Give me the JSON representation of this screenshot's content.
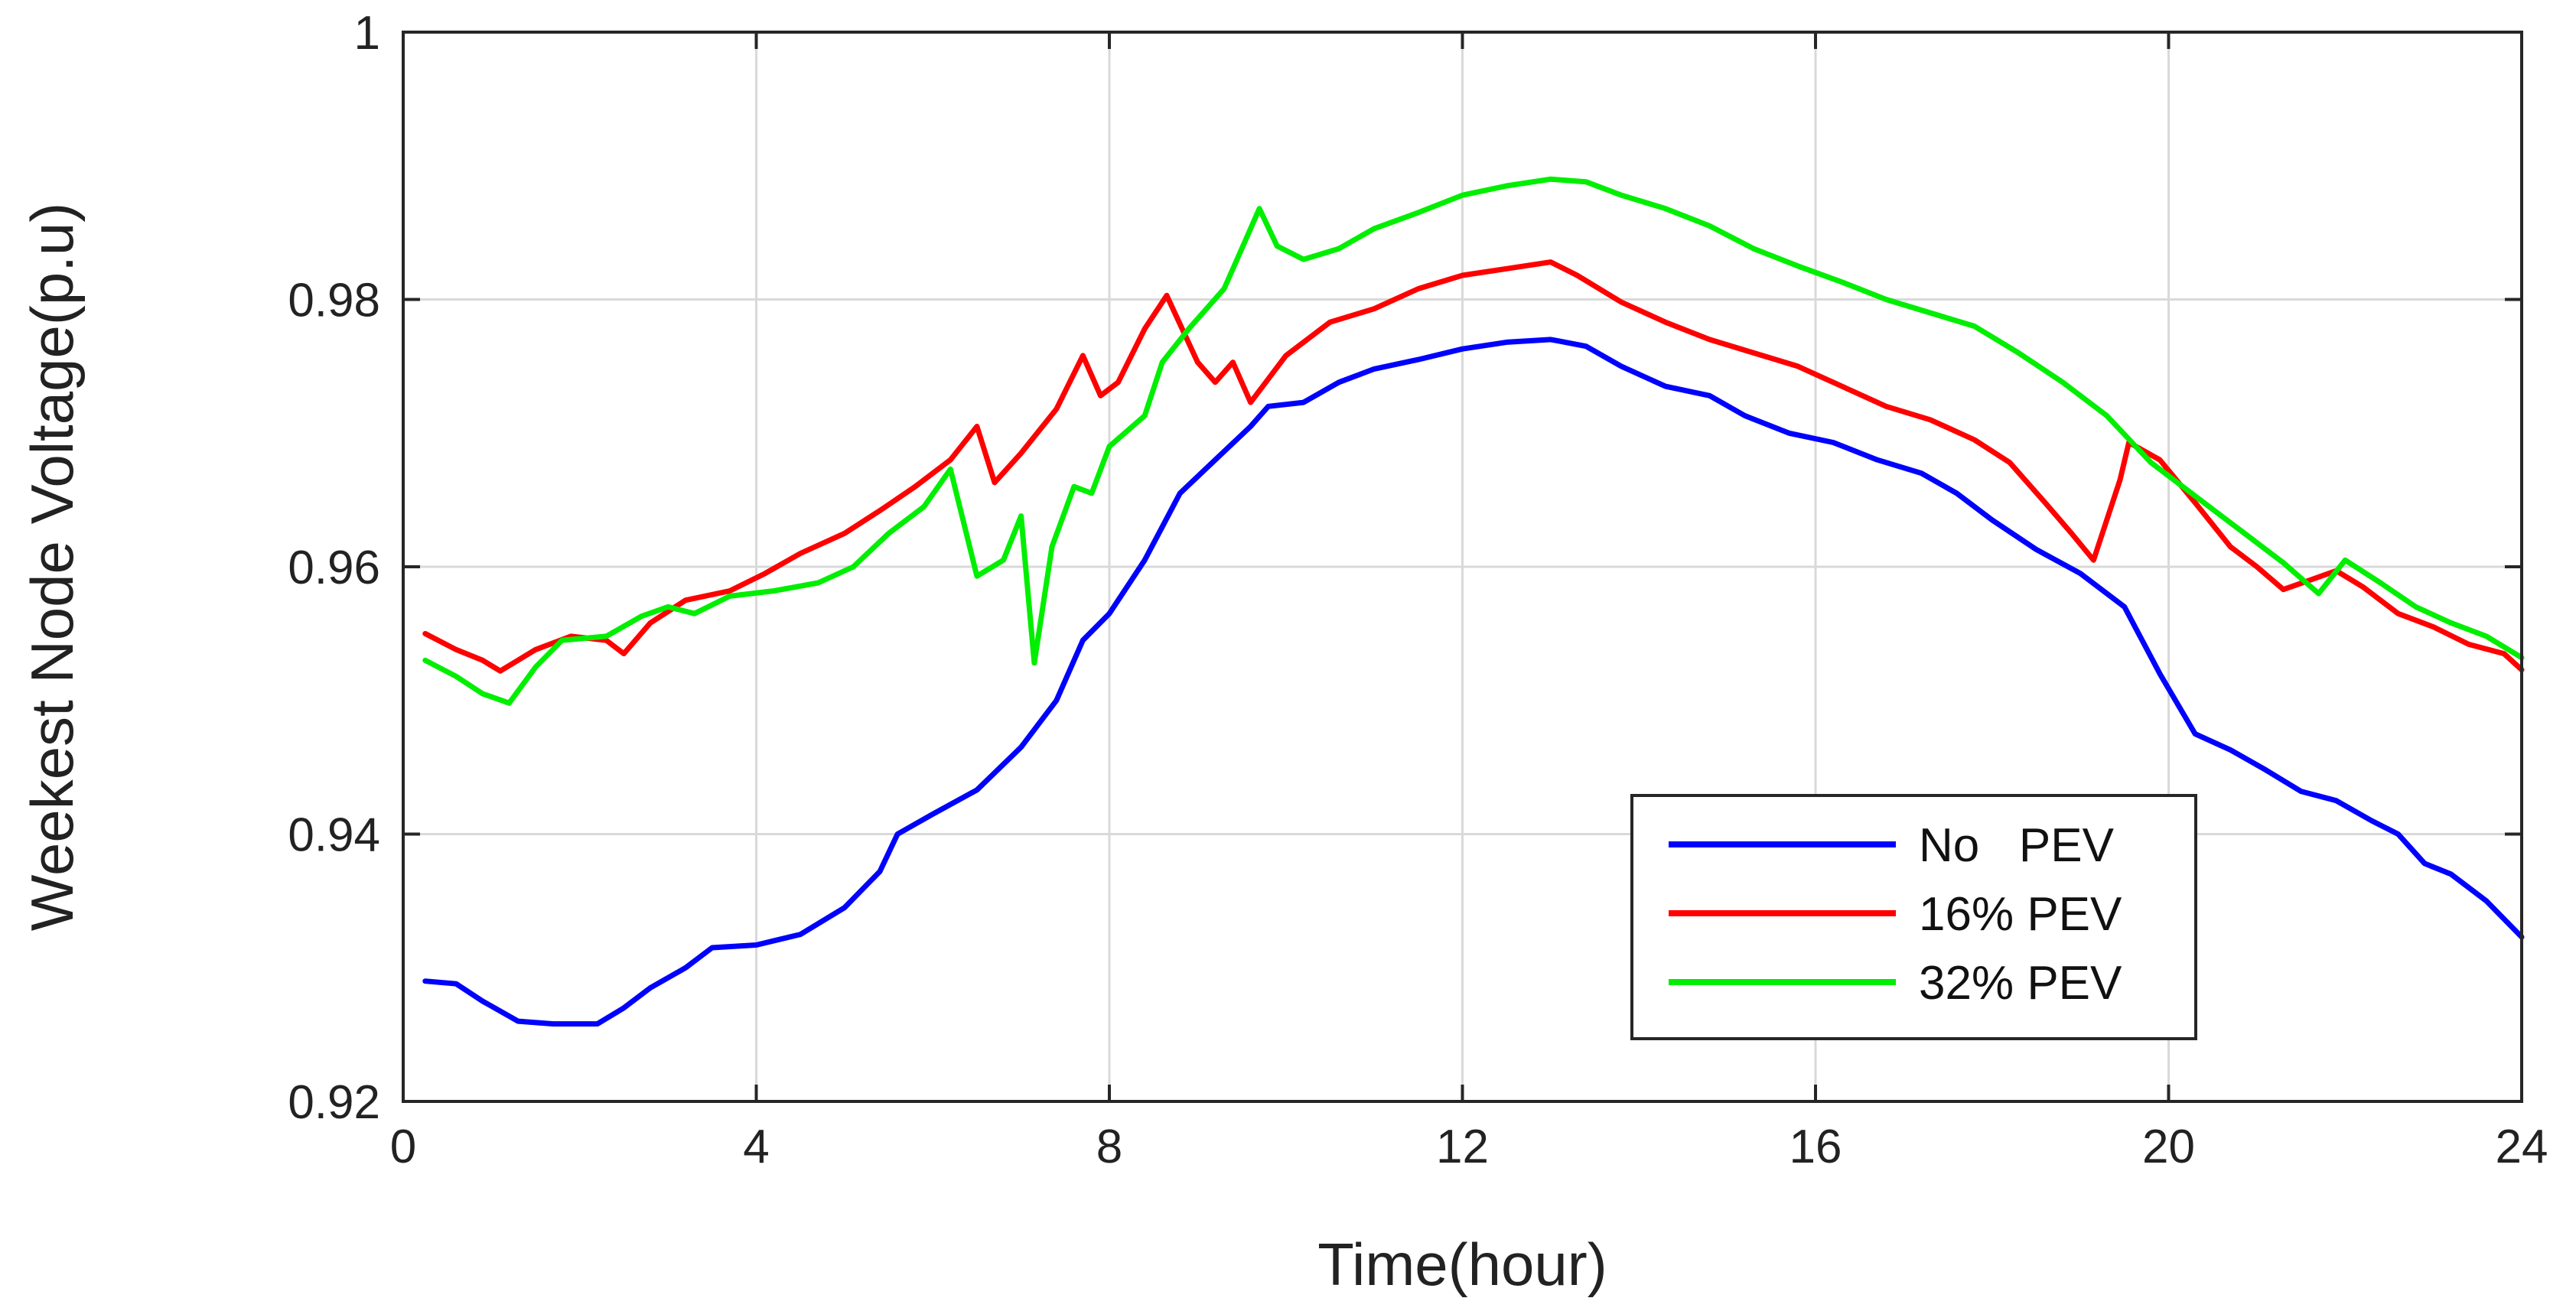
{
  "chart_data": {
    "type": "line",
    "xlabel": "Time(hour)",
    "ylabel": "Weekest Node Voltage(p.u)",
    "xlim": [
      0,
      24
    ],
    "ylim": [
      0.92,
      1.0
    ],
    "xticks": [
      0,
      4,
      8,
      12,
      16,
      20,
      24
    ],
    "xtick_labels": [
      "0",
      "4",
      "8",
      "12",
      "16",
      "20",
      "24"
    ],
    "yticks": [
      0.92,
      0.94,
      0.96,
      0.98,
      1.0
    ],
    "ytick_labels": [
      "0.92",
      "0.94",
      "0.96",
      "0.98",
      "1"
    ],
    "grid": true,
    "legend_position": "lower-right",
    "series": [
      {
        "name": "No   PEV",
        "color": "#0000ff",
        "points": [
          [
            0.25,
            0.929
          ],
          [
            0.6,
            0.9288
          ],
          [
            0.9,
            0.9275
          ],
          [
            1.3,
            0.926
          ],
          [
            1.7,
            0.9258
          ],
          [
            2.2,
            0.9258
          ],
          [
            2.5,
            0.927
          ],
          [
            2.8,
            0.9285
          ],
          [
            3.2,
            0.93
          ],
          [
            3.5,
            0.9315
          ],
          [
            4.0,
            0.9317
          ],
          [
            4.5,
            0.9325
          ],
          [
            5.0,
            0.9345
          ],
          [
            5.4,
            0.9372
          ],
          [
            5.6,
            0.94
          ],
          [
            6.0,
            0.9415
          ],
          [
            6.5,
            0.9433
          ],
          [
            7.0,
            0.9465
          ],
          [
            7.4,
            0.95
          ],
          [
            7.7,
            0.9545
          ],
          [
            8.0,
            0.9565
          ],
          [
            8.4,
            0.9605
          ],
          [
            8.8,
            0.9655
          ],
          [
            9.2,
            0.968
          ],
          [
            9.6,
            0.9705
          ],
          [
            9.8,
            0.972
          ],
          [
            10.2,
            0.9723
          ],
          [
            10.6,
            0.9738
          ],
          [
            11.0,
            0.9748
          ],
          [
            11.5,
            0.9755
          ],
          [
            12.0,
            0.9763
          ],
          [
            12.5,
            0.9768
          ],
          [
            13.0,
            0.977
          ],
          [
            13.4,
            0.9765
          ],
          [
            13.8,
            0.975
          ],
          [
            14.3,
            0.9735
          ],
          [
            14.8,
            0.9728
          ],
          [
            15.2,
            0.9713
          ],
          [
            15.7,
            0.97
          ],
          [
            16.2,
            0.9693
          ],
          [
            16.7,
            0.968
          ],
          [
            17.2,
            0.967
          ],
          [
            17.6,
            0.9655
          ],
          [
            18.0,
            0.9635
          ],
          [
            18.5,
            0.9613
          ],
          [
            19.0,
            0.9595
          ],
          [
            19.5,
            0.957
          ],
          [
            19.9,
            0.952
          ],
          [
            20.3,
            0.9475
          ],
          [
            20.7,
            0.9463
          ],
          [
            21.1,
            0.9448
          ],
          [
            21.5,
            0.9432
          ],
          [
            21.9,
            0.9425
          ],
          [
            22.3,
            0.941
          ],
          [
            22.6,
            0.94
          ],
          [
            22.9,
            0.9378
          ],
          [
            23.2,
            0.937
          ],
          [
            23.6,
            0.935
          ],
          [
            24.0,
            0.9323
          ]
        ]
      },
      {
        "name": "16% PEV",
        "color": "#ff0000",
        "points": [
          [
            0.25,
            0.955
          ],
          [
            0.6,
            0.9538
          ],
          [
            0.9,
            0.953
          ],
          [
            1.1,
            0.9522
          ],
          [
            1.5,
            0.9538
          ],
          [
            1.9,
            0.9548
          ],
          [
            2.3,
            0.9545
          ],
          [
            2.5,
            0.9535
          ],
          [
            2.8,
            0.9558
          ],
          [
            3.2,
            0.9575
          ],
          [
            3.7,
            0.9582
          ],
          [
            4.1,
            0.9595
          ],
          [
            4.5,
            0.961
          ],
          [
            5.0,
            0.9625
          ],
          [
            5.4,
            0.9642
          ],
          [
            5.8,
            0.966
          ],
          [
            6.2,
            0.968
          ],
          [
            6.5,
            0.9705
          ],
          [
            6.7,
            0.9663
          ],
          [
            7.0,
            0.9685
          ],
          [
            7.4,
            0.9718
          ],
          [
            7.7,
            0.9758
          ],
          [
            7.9,
            0.9728
          ],
          [
            8.1,
            0.9738
          ],
          [
            8.4,
            0.9778
          ],
          [
            8.65,
            0.9803
          ],
          [
            9.0,
            0.9753
          ],
          [
            9.2,
            0.9738
          ],
          [
            9.4,
            0.9753
          ],
          [
            9.6,
            0.9723
          ],
          [
            10.0,
            0.9758
          ],
          [
            10.5,
            0.9783
          ],
          [
            11.0,
            0.9793
          ],
          [
            11.5,
            0.9808
          ],
          [
            12.0,
            0.9818
          ],
          [
            12.5,
            0.9823
          ],
          [
            13.0,
            0.9828
          ],
          [
            13.3,
            0.9818
          ],
          [
            13.8,
            0.9798
          ],
          [
            14.3,
            0.9783
          ],
          [
            14.8,
            0.977
          ],
          [
            15.3,
            0.976
          ],
          [
            15.8,
            0.975
          ],
          [
            16.3,
            0.9735
          ],
          [
            16.8,
            0.972
          ],
          [
            17.3,
            0.971
          ],
          [
            17.8,
            0.9695
          ],
          [
            18.2,
            0.9678
          ],
          [
            18.6,
            0.9648
          ],
          [
            18.9,
            0.9625
          ],
          [
            19.15,
            0.9605
          ],
          [
            19.45,
            0.9665
          ],
          [
            19.55,
            0.9693
          ],
          [
            19.9,
            0.968
          ],
          [
            20.3,
            0.9648
          ],
          [
            20.7,
            0.9615
          ],
          [
            21.0,
            0.96
          ],
          [
            21.3,
            0.9583
          ],
          [
            21.6,
            0.959
          ],
          [
            21.9,
            0.9597
          ],
          [
            22.2,
            0.9585
          ],
          [
            22.6,
            0.9565
          ],
          [
            23.0,
            0.9555
          ],
          [
            23.4,
            0.9542
          ],
          [
            23.8,
            0.9535
          ],
          [
            24.0,
            0.9523
          ]
        ]
      },
      {
        "name": "32% PEV",
        "color": "#00ee00",
        "points": [
          [
            0.25,
            0.953
          ],
          [
            0.6,
            0.9518
          ],
          [
            0.9,
            0.9505
          ],
          [
            1.2,
            0.9498
          ],
          [
            1.5,
            0.9525
          ],
          [
            1.8,
            0.9545
          ],
          [
            2.3,
            0.9548
          ],
          [
            2.7,
            0.9563
          ],
          [
            3.0,
            0.957
          ],
          [
            3.3,
            0.9565
          ],
          [
            3.7,
            0.9578
          ],
          [
            4.2,
            0.9582
          ],
          [
            4.7,
            0.9588
          ],
          [
            5.1,
            0.96
          ],
          [
            5.5,
            0.9625
          ],
          [
            5.9,
            0.9645
          ],
          [
            6.2,
            0.9673
          ],
          [
            6.5,
            0.9593
          ],
          [
            6.8,
            0.9605
          ],
          [
            7.0,
            0.9638
          ],
          [
            7.15,
            0.9528
          ],
          [
            7.35,
            0.9615
          ],
          [
            7.6,
            0.966
          ],
          [
            7.8,
            0.9655
          ],
          [
            8.0,
            0.969
          ],
          [
            8.4,
            0.9713
          ],
          [
            8.6,
            0.9753
          ],
          [
            8.9,
            0.9778
          ],
          [
            9.3,
            0.9808
          ],
          [
            9.5,
            0.9838
          ],
          [
            9.7,
            0.9868
          ],
          [
            9.9,
            0.984
          ],
          [
            10.2,
            0.983
          ],
          [
            10.6,
            0.9838
          ],
          [
            11.0,
            0.9853
          ],
          [
            11.5,
            0.9865
          ],
          [
            12.0,
            0.9878
          ],
          [
            12.5,
            0.9885
          ],
          [
            13.0,
            0.989
          ],
          [
            13.4,
            0.9888
          ],
          [
            13.8,
            0.9878
          ],
          [
            14.3,
            0.9868
          ],
          [
            14.8,
            0.9855
          ],
          [
            15.3,
            0.9838
          ],
          [
            15.8,
            0.9825
          ],
          [
            16.3,
            0.9813
          ],
          [
            16.8,
            0.98
          ],
          [
            17.3,
            0.979
          ],
          [
            17.8,
            0.978
          ],
          [
            18.3,
            0.976
          ],
          [
            18.8,
            0.9738
          ],
          [
            19.3,
            0.9713
          ],
          [
            19.8,
            0.9678
          ],
          [
            20.3,
            0.9653
          ],
          [
            20.8,
            0.9628
          ],
          [
            21.3,
            0.9603
          ],
          [
            21.7,
            0.958
          ],
          [
            22.0,
            0.9605
          ],
          [
            22.4,
            0.9588
          ],
          [
            22.8,
            0.957
          ],
          [
            23.2,
            0.9558
          ],
          [
            23.6,
            0.9548
          ],
          [
            24.0,
            0.9532
          ]
        ]
      }
    ]
  }
}
